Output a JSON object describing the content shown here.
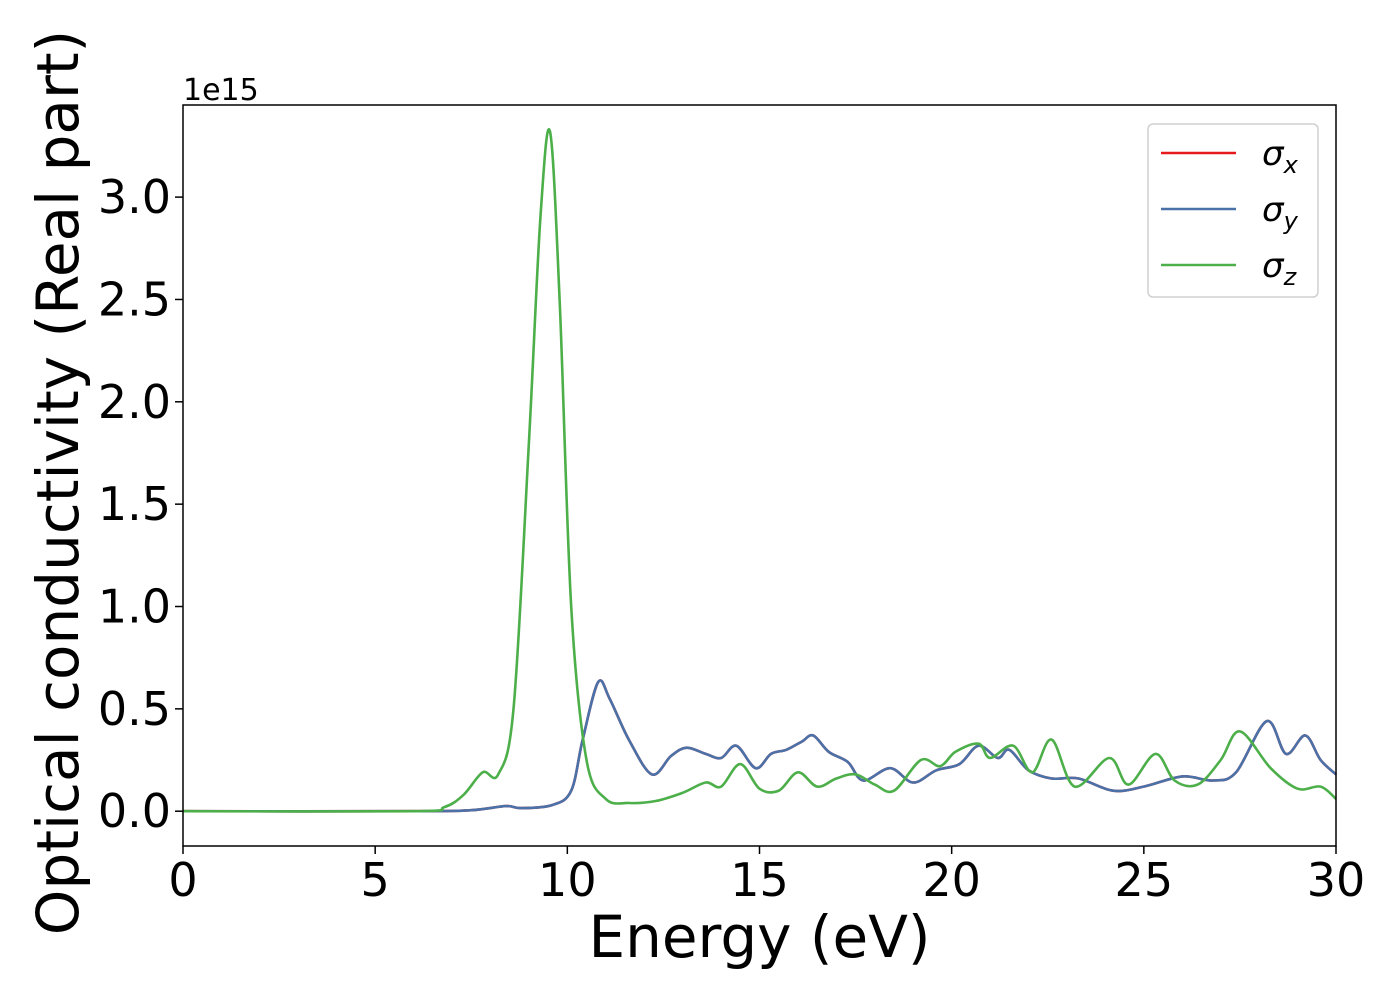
{
  "chart_data": {
    "type": "line",
    "xlabel": "Energy (eV)",
    "ylabel": "Optical conductivity (Real part)",
    "y_offset_label": "1e15",
    "xlim": [
      0,
      30
    ],
    "ylim": [
      -0.17,
      3.45
    ],
    "x_ticks": [
      0,
      5,
      10,
      15,
      20,
      25,
      30
    ],
    "x_tick_labels": [
      "0",
      "5",
      "10",
      "15",
      "20",
      "25",
      "30"
    ],
    "y_ticks": [
      0.0,
      0.5,
      1.0,
      1.5,
      2.0,
      2.5,
      3.0
    ],
    "y_tick_labels": [
      "0.0",
      "0.5",
      "1.0",
      "1.5",
      "2.0",
      "2.5",
      "3.0"
    ],
    "grid": false,
    "legend_position": "top-right",
    "series": [
      {
        "name": "σx",
        "legend_symbol": "σ",
        "legend_subscript": "x",
        "color": "#e41a1c",
        "visible_note_hidden_behind": "σy",
        "x": [
          0,
          6,
          7.5,
          8.4,
          8.8,
          9.6,
          10.1,
          10.4,
          10.8,
          11.1,
          11.6,
          12.2,
          12.7,
          13.1,
          13.6,
          14.0,
          14.4,
          14.9,
          15.3,
          15.7,
          16.1,
          16.4,
          16.8,
          17.3,
          17.7,
          18.4,
          19.0,
          19.6,
          20.2,
          20.7,
          21.2,
          21.5,
          22.0,
          22.6,
          23.3,
          24.2,
          25.0,
          26.0,
          26.8,
          27.4,
          28.2,
          28.7,
          29.2,
          29.6,
          30.0
        ],
        "y": [
          0.0,
          0.0,
          0.005,
          0.025,
          0.015,
          0.03,
          0.1,
          0.35,
          0.63,
          0.55,
          0.35,
          0.18,
          0.27,
          0.31,
          0.28,
          0.26,
          0.32,
          0.21,
          0.28,
          0.3,
          0.34,
          0.37,
          0.29,
          0.24,
          0.15,
          0.21,
          0.14,
          0.2,
          0.23,
          0.32,
          0.26,
          0.3,
          0.2,
          0.16,
          0.16,
          0.1,
          0.12,
          0.17,
          0.15,
          0.19,
          0.44,
          0.28,
          0.37,
          0.25,
          0.18
        ]
      },
      {
        "name": "σy",
        "legend_symbol": "σ",
        "legend_subscript": "y",
        "color": "#4a72a8",
        "x": [
          0,
          6,
          7.5,
          8.4,
          8.8,
          9.6,
          10.1,
          10.4,
          10.8,
          11.1,
          11.6,
          12.2,
          12.7,
          13.1,
          13.6,
          14.0,
          14.4,
          14.9,
          15.3,
          15.7,
          16.1,
          16.4,
          16.8,
          17.3,
          17.7,
          18.4,
          19.0,
          19.6,
          20.2,
          20.7,
          21.2,
          21.5,
          22.0,
          22.6,
          23.3,
          24.2,
          25.0,
          26.0,
          26.8,
          27.4,
          28.2,
          28.7,
          29.2,
          29.6,
          30.0
        ],
        "y": [
          0.0,
          0.0,
          0.005,
          0.025,
          0.015,
          0.03,
          0.1,
          0.35,
          0.63,
          0.55,
          0.35,
          0.18,
          0.27,
          0.31,
          0.28,
          0.26,
          0.32,
          0.21,
          0.28,
          0.3,
          0.34,
          0.37,
          0.29,
          0.24,
          0.15,
          0.21,
          0.14,
          0.2,
          0.23,
          0.32,
          0.26,
          0.3,
          0.2,
          0.16,
          0.16,
          0.1,
          0.12,
          0.17,
          0.15,
          0.19,
          0.44,
          0.28,
          0.37,
          0.25,
          0.18
        ]
      },
      {
        "name": "σz",
        "legend_symbol": "σ",
        "legend_subscript": "z",
        "color": "#4daf4a",
        "x": [
          0,
          6,
          6.8,
          7.3,
          7.8,
          8.2,
          8.6,
          9.0,
          9.3,
          9.55,
          9.8,
          10.1,
          10.5,
          11.0,
          11.6,
          12.3,
          13.0,
          13.6,
          14.0,
          14.5,
          15.0,
          15.5,
          16.0,
          16.5,
          17.0,
          17.5,
          18.0,
          18.5,
          19.2,
          19.7,
          20.1,
          20.7,
          21.0,
          21.6,
          22.1,
          22.6,
          23.2,
          24.1,
          24.6,
          25.3,
          25.8,
          26.4,
          27.0,
          27.5,
          28.3,
          29.0,
          29.6,
          30.0
        ],
        "y": [
          0.0,
          0.0,
          0.02,
          0.08,
          0.19,
          0.18,
          0.5,
          1.8,
          2.9,
          3.32,
          2.5,
          1.0,
          0.25,
          0.06,
          0.04,
          0.05,
          0.09,
          0.14,
          0.12,
          0.23,
          0.11,
          0.1,
          0.19,
          0.12,
          0.16,
          0.18,
          0.13,
          0.1,
          0.25,
          0.22,
          0.29,
          0.33,
          0.26,
          0.32,
          0.19,
          0.35,
          0.12,
          0.26,
          0.13,
          0.28,
          0.15,
          0.13,
          0.25,
          0.39,
          0.21,
          0.11,
          0.12,
          0.06
        ]
      }
    ]
  }
}
